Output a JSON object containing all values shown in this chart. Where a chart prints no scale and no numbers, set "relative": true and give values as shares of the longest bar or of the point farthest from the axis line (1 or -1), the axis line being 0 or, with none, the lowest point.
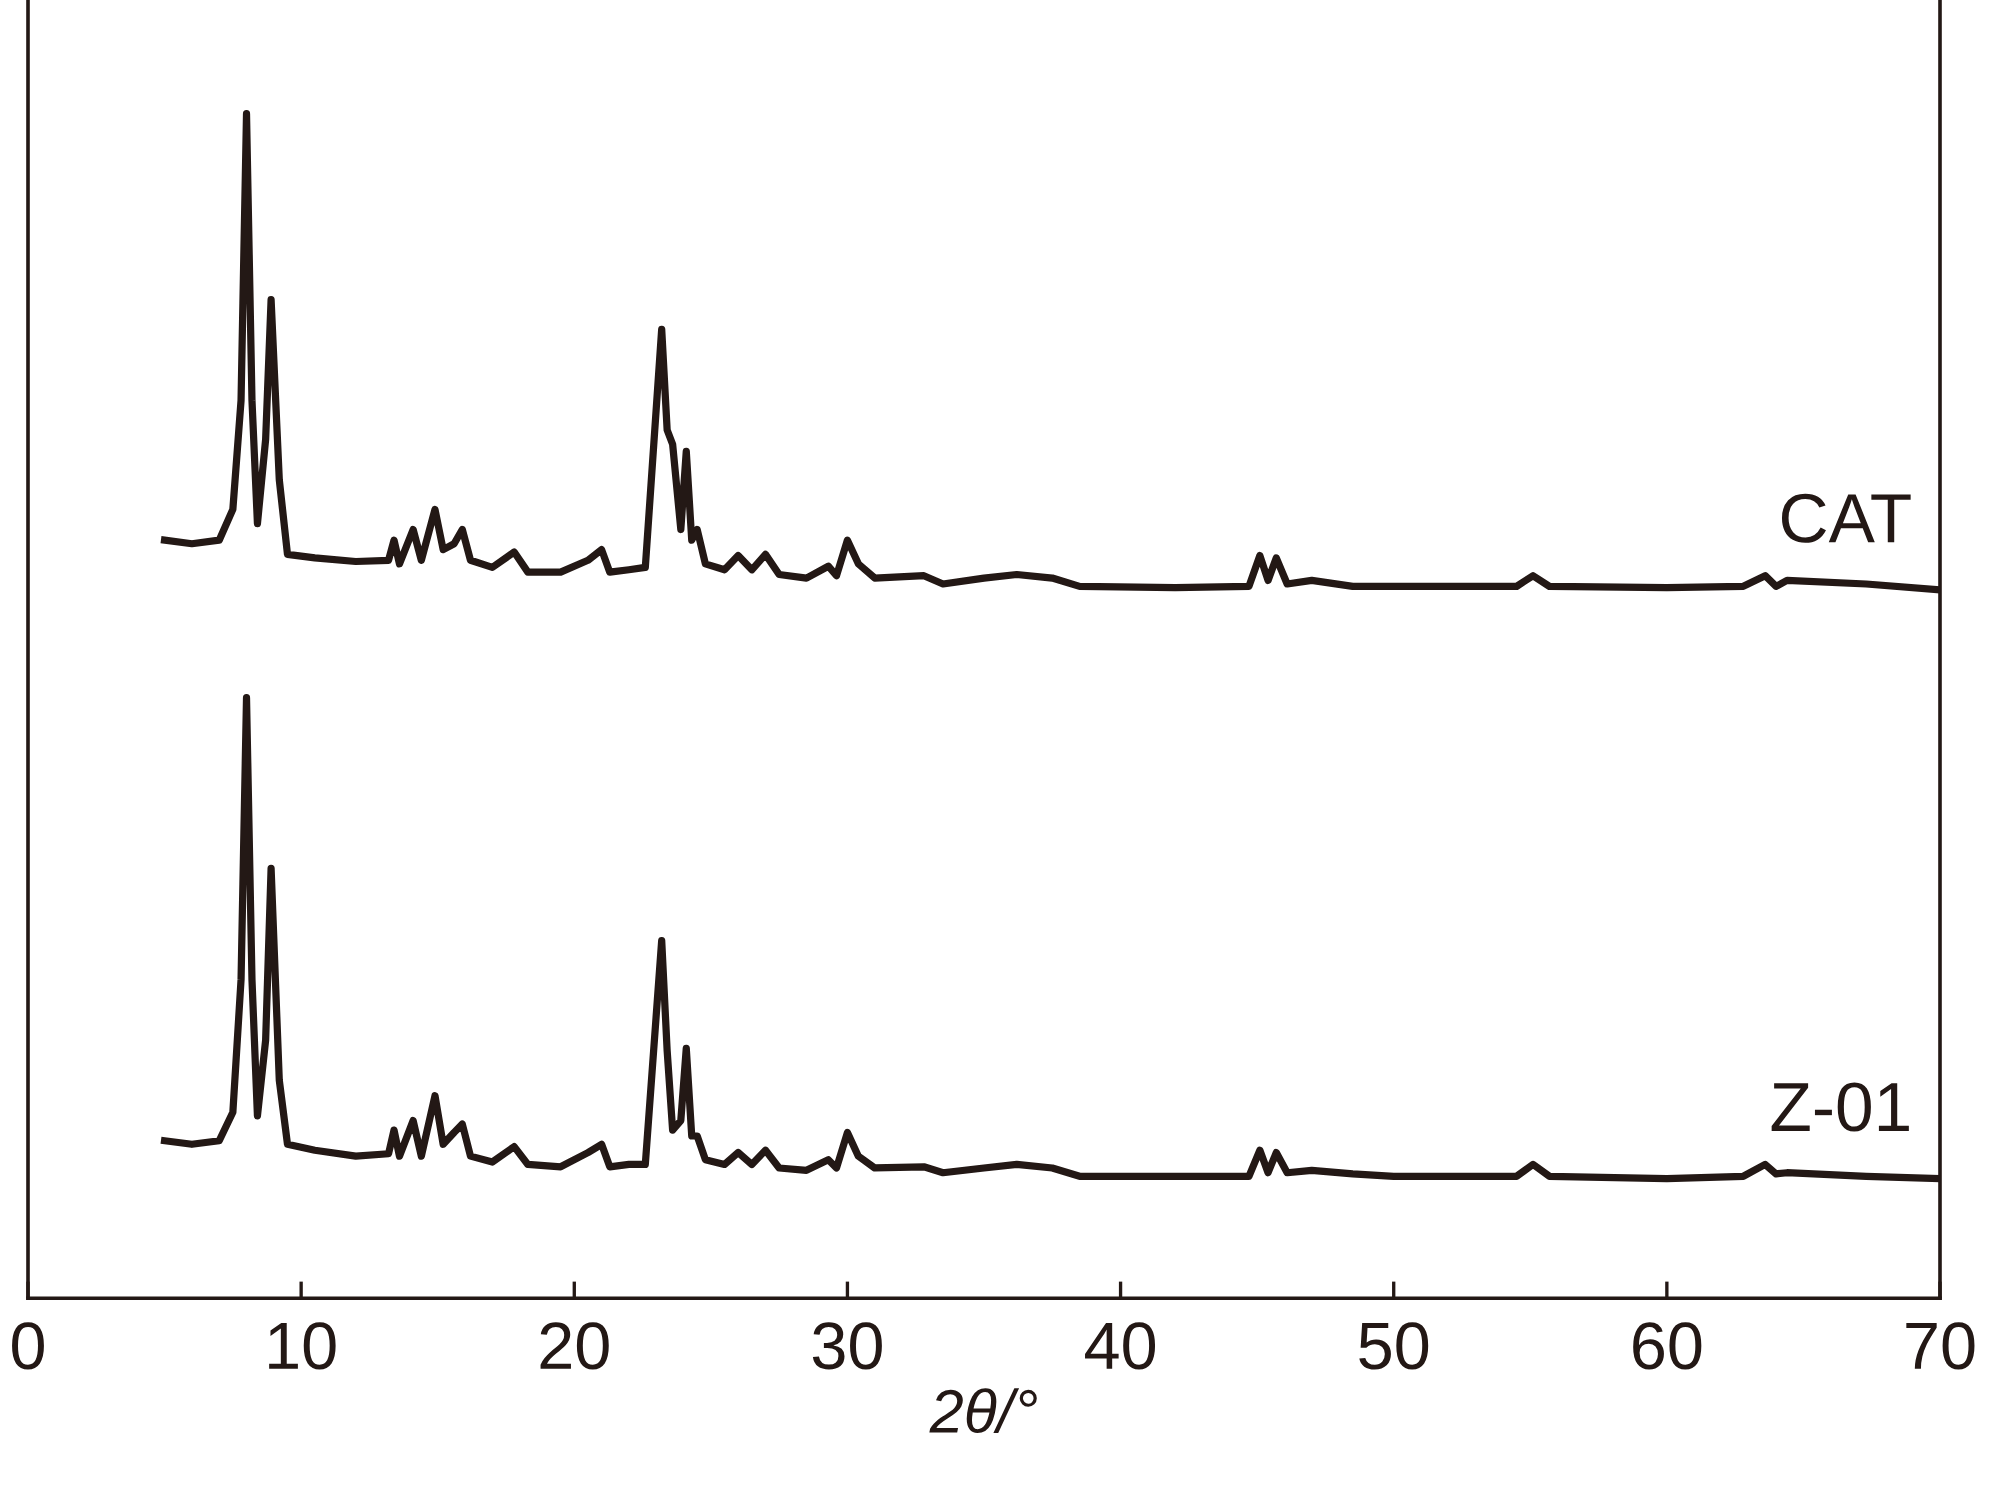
{
  "chart_data": {
    "type": "line",
    "relative": true,
    "xlabel": "2θ/°",
    "xlim": [
      0,
      70
    ],
    "xticks": [
      0,
      10,
      20,
      30,
      40,
      50,
      60,
      70
    ],
    "legend": false,
    "grid": false,
    "tick_labels": "x",
    "marker": "none",
    "line_style": "solid",
    "x": [
      5.0,
      6.0,
      7.0,
      7.5,
      7.8,
      8.0,
      8.2,
      8.4,
      8.7,
      8.9,
      9.2,
      9.5,
      10.5,
      12.0,
      13.2,
      13.4,
      13.6,
      14.1,
      14.4,
      14.9,
      15.2,
      15.6,
      15.9,
      16.2,
      17.0,
      17.8,
      18.3,
      19.5,
      20.5,
      21.0,
      21.3,
      22.0,
      22.6,
      23.2,
      23.4,
      23.6,
      23.9,
      24.1,
      24.3,
      24.5,
      24.8,
      25.5,
      26.0,
      26.5,
      27.0,
      27.5,
      28.5,
      29.3,
      29.6,
      30.0,
      30.4,
      31.0,
      32.8,
      33.5,
      35.0,
      36.2,
      37.5,
      38.5,
      42.0,
      44.7,
      45.1,
      45.4,
      45.7,
      46.1,
      47.0,
      48.5,
      50.0,
      54.5,
      55.1,
      55.7,
      60.0,
      62.8,
      63.6,
      64.0,
      64.4,
      67.3,
      70.0
    ],
    "series": [
      {
        "name": "CAT",
        "color": "#231815",
        "values": [
          0.64,
          0.637,
          0.64,
          0.666,
          0.758,
          1.0,
          0.758,
          0.654,
          0.725,
          0.843,
          0.691,
          0.628,
          0.625,
          0.622,
          0.623,
          0.64,
          0.62,
          0.649,
          0.623,
          0.666,
          0.632,
          0.637,
          0.649,
          0.623,
          0.617,
          0.63,
          0.613,
          0.613,
          0.623,
          0.632,
          0.613,
          0.615,
          0.617,
          0.818,
          0.733,
          0.721,
          0.649,
          0.715,
          0.64,
          0.649,
          0.62,
          0.615,
          0.627,
          0.615,
          0.628,
          0.611,
          0.608,
          0.618,
          0.61,
          0.64,
          0.62,
          0.608,
          0.61,
          0.603,
          0.608,
          0.611,
          0.608,
          0.601,
          0.6,
          0.601,
          0.627,
          0.606,
          0.625,
          0.603,
          0.606,
          0.601,
          0.601,
          0.601,
          0.61,
          0.601,
          0.6,
          0.601,
          0.61,
          0.601,
          0.606,
          0.603,
          0.598
        ]
      },
      {
        "name": "Z-01",
        "color": "#231815",
        "values": [
          0.133,
          0.13,
          0.133,
          0.157,
          0.269,
          0.507,
          0.269,
          0.154,
          0.218,
          0.363,
          0.184,
          0.13,
          0.125,
          0.12,
          0.122,
          0.142,
          0.12,
          0.15,
          0.12,
          0.171,
          0.13,
          0.14,
          0.147,
          0.12,
          0.115,
          0.128,
          0.113,
          0.111,
          0.123,
          0.13,
          0.111,
          0.113,
          0.113,
          0.302,
          0.209,
          0.142,
          0.15,
          0.211,
          0.137,
          0.137,
          0.117,
          0.113,
          0.123,
          0.113,
          0.125,
          0.11,
          0.108,
          0.117,
          0.11,
          0.14,
          0.12,
          0.11,
          0.111,
          0.106,
          0.11,
          0.113,
          0.11,
          0.103,
          0.103,
          0.103,
          0.125,
          0.106,
          0.123,
          0.106,
          0.108,
          0.105,
          0.103,
          0.103,
          0.113,
          0.103,
          0.101,
          0.103,
          0.113,
          0.105,
          0.106,
          0.103,
          0.101
        ]
      }
    ]
  }
}
